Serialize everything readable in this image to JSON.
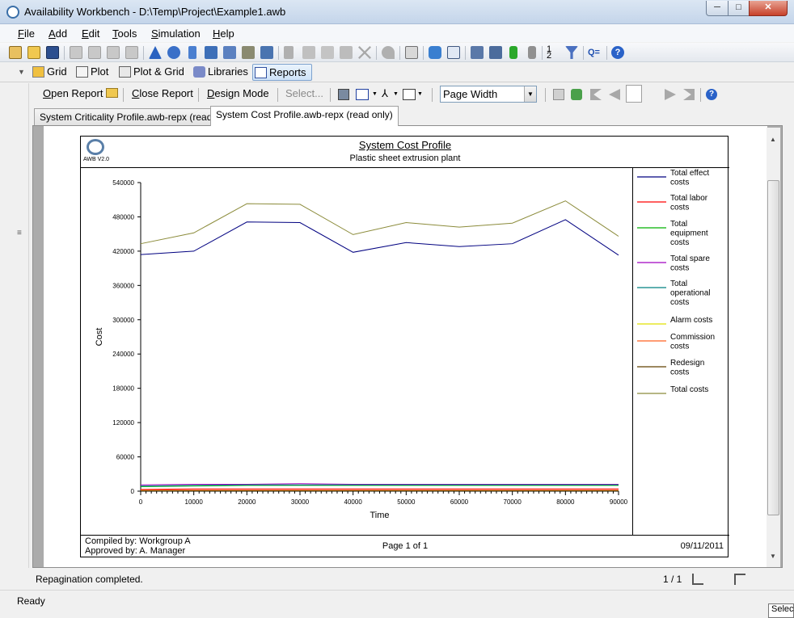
{
  "window": {
    "title": "Availability Workbench - D:\\Temp\\Project\\Example1.awb",
    "min": "─",
    "max": "□",
    "close": "✕"
  },
  "menu": [
    {
      "u": "F",
      "rest": "ile"
    },
    {
      "u": "A",
      "rest": "dd"
    },
    {
      "u": "E",
      "rest": "dit"
    },
    {
      "u": "T",
      "rest": "ools"
    },
    {
      "u": "S",
      "rest": "imulation"
    },
    {
      "u": "H",
      "rest": "elp"
    }
  ],
  "views": {
    "grid": "Grid",
    "plot": "Plot",
    "plot_grid": "Plot & Grid",
    "libraries": "Libraries",
    "reports": "Reports"
  },
  "report_toolbar": {
    "open_u": "O",
    "open_rest": "pen Report",
    "close_u": "C",
    "close_rest": "lose Report",
    "design_u": "D",
    "design_rest": "esign Mode",
    "select": "Select...",
    "zoom": "Page Width"
  },
  "tabs": [
    {
      "label": "System Criticality Profile.awb-repx (read only)"
    },
    {
      "label": "System Cost Profile.awb-repx (read only)"
    }
  ],
  "report": {
    "title": "System Cost Profile",
    "subtitle": "Plastic sheet extrusion plant",
    "logo_text": "AWB V2.0",
    "compiled_by": "Compiled by: Workgroup A",
    "approved_by": "Approved by: A. Manager",
    "page": "Page 1 of 1",
    "date": "09/11/2011"
  },
  "chart_data": {
    "type": "line",
    "xlabel": "Time",
    "ylabel": "Cost",
    "xlim": [
      0,
      90000
    ],
    "ylim": [
      0,
      540000
    ],
    "x_ticks": [
      0,
      10000,
      20000,
      30000,
      40000,
      50000,
      60000,
      70000,
      80000,
      90000
    ],
    "y_ticks": [
      0,
      60000,
      120000,
      180000,
      240000,
      300000,
      360000,
      420000,
      480000,
      540000
    ],
    "x": [
      0,
      10000,
      20000,
      30000,
      40000,
      50000,
      60000,
      70000,
      80000,
      90000
    ],
    "series": [
      {
        "name": "Total effect costs",
        "color": "#000080",
        "values": [
          414000,
          420000,
          471000,
          470000,
          418000,
          435000,
          428000,
          433000,
          475000,
          413000
        ]
      },
      {
        "name": "Total labor costs",
        "color": "#ff0000",
        "values": [
          3000,
          4000,
          4000,
          4000,
          4000,
          4000,
          4000,
          4000,
          4000,
          4000
        ]
      },
      {
        "name": "Total equipment costs",
        "color": "#00b000",
        "values": [
          8000,
          9000,
          10000,
          10000,
          10000,
          10000,
          10000,
          10000,
          10000,
          10000
        ]
      },
      {
        "name": "Total spare costs",
        "color": "#a000c0",
        "values": [
          11000,
          12000,
          12000,
          13000,
          12000,
          12000,
          12000,
          12000,
          12000,
          12000
        ]
      },
      {
        "name": "Total operational costs",
        "color": "#008080",
        "values": [
          9000,
          10000,
          11000,
          11000,
          11000,
          11000,
          11000,
          11000,
          11000,
          11000
        ]
      },
      {
        "name": "Alarm costs",
        "color": "#e0e000",
        "values": [
          1500,
          1500,
          1500,
          1500,
          1500,
          1500,
          1500,
          1500,
          1500,
          1500
        ]
      },
      {
        "name": "Commission costs",
        "color": "#ff6020",
        "values": [
          2000,
          2000,
          2000,
          2000,
          2000,
          2000,
          2000,
          2000,
          2000,
          2000
        ]
      },
      {
        "name": "Redesign costs",
        "color": "#604000",
        "values": [
          500,
          500,
          500,
          500,
          500,
          500,
          500,
          500,
          500,
          500
        ]
      },
      {
        "name": "Total costs",
        "color": "#8b8b3a",
        "values": [
          433000,
          452000,
          503000,
          502000,
          449000,
          470000,
          462000,
          469000,
          508000,
          446000
        ]
      }
    ],
    "legend_position": "right",
    "grid": false
  },
  "status": {
    "message": "Repagination completed.",
    "pages": "1 / 1",
    "ready": "Ready",
    "tooltip": "Selec"
  }
}
